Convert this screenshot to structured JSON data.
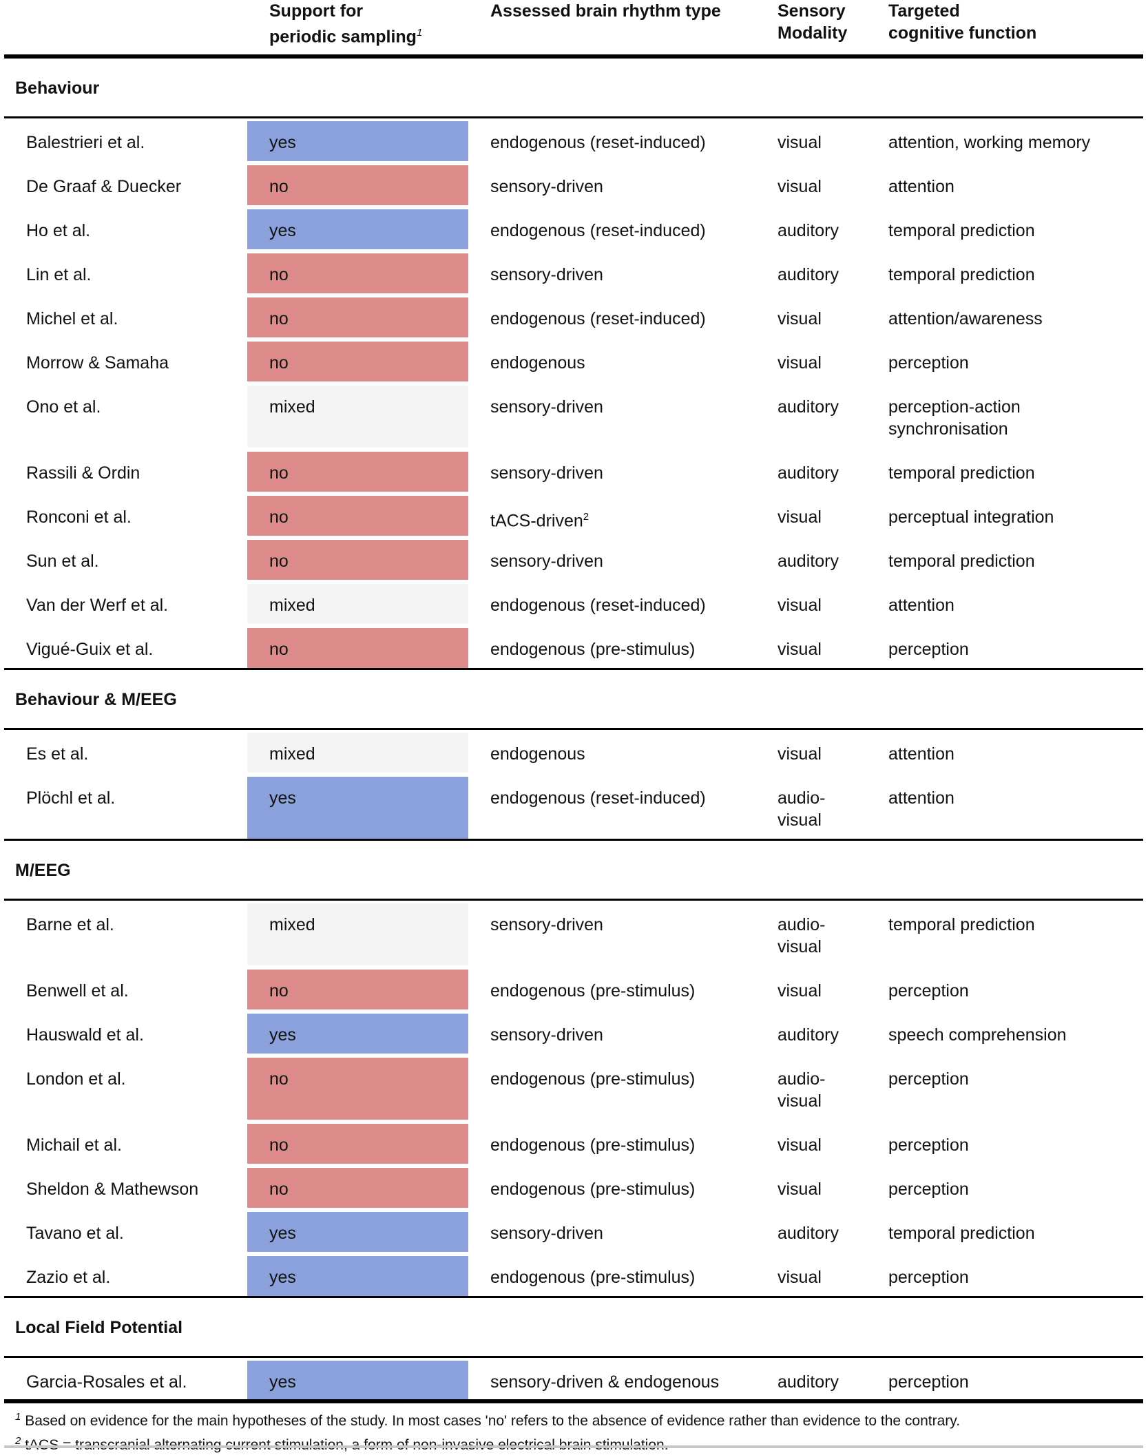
{
  "colors": {
    "yes": "#8aa1dc",
    "no": "#dd8a8b",
    "mixed": "#f4f4f4"
  },
  "headers": {
    "support_line1": "Support for",
    "support_line2": "periodic sampling",
    "support_mark": "1",
    "rhythm": "Assessed brain rhythm type",
    "modality_line1": "Sensory",
    "modality_line2": "Modality",
    "function_line1": "Targeted",
    "function_line2": "cognitive function"
  },
  "sections": [
    {
      "title": "Behaviour",
      "rows": [
        {
          "study": "Balestrieri et al.",
          "support": "yes",
          "rhythm": "endogenous (reset-induced)",
          "modality": "visual",
          "function": "attention, working memory"
        },
        {
          "study": "De Graaf & Duecker",
          "support": "no",
          "rhythm": "sensory-driven",
          "modality": "visual",
          "function": "attention"
        },
        {
          "study": "Ho et al.",
          "support": "yes",
          "rhythm": "endogenous (reset-induced)",
          "modality": "auditory",
          "function": "temporal prediction"
        },
        {
          "study": "Lin et al.",
          "support": "no",
          "rhythm": "sensory-driven",
          "modality": "auditory",
          "function": "temporal prediction"
        },
        {
          "study": "Michel et al.",
          "support": "no",
          "rhythm": "endogenous (reset-induced)",
          "modality": "visual",
          "function": "attention/awareness"
        },
        {
          "study": "Morrow & Samaha",
          "support": "no",
          "rhythm": "endogenous",
          "modality": "visual",
          "function": "perception"
        },
        {
          "study": "Ono et al.",
          "support": "mixed",
          "rhythm": "sensory-driven",
          "modality": "auditory",
          "function": "perception-action",
          "function_line2": "synchronisation"
        },
        {
          "study": "Rassili & Ordin",
          "support": "no",
          "rhythm": "sensory-driven",
          "modality": "auditory",
          "function": "temporal prediction"
        },
        {
          "study": "Ronconi et al.",
          "support": "no",
          "rhythm": "tACS-driven",
          "rhythm_mark": "2",
          "modality": "visual",
          "function": "perceptual integration"
        },
        {
          "study": "Sun et al.",
          "support": "no",
          "rhythm": "sensory-driven",
          "modality": "auditory",
          "function": "temporal prediction"
        },
        {
          "study": "Van der Werf et al.",
          "support": "mixed",
          "rhythm": "endogenous (reset-induced)",
          "modality": "visual",
          "function": "attention"
        },
        {
          "study": "Vigué-Guix et al.",
          "support": "no",
          "rhythm": "endogenous (pre-stimulus)",
          "modality": "visual",
          "function": "perception"
        }
      ]
    },
    {
      "title": "Behaviour & M/EEG",
      "rows": [
        {
          "study": "Es et al.",
          "support": "mixed",
          "rhythm": "endogenous",
          "modality": "visual",
          "function": "attention"
        },
        {
          "study": "Plöchl et al.",
          "support": "yes",
          "rhythm": "endogenous (reset-induced)",
          "modality": "audio-",
          "modality_line2": "visual",
          "function": "attention"
        }
      ]
    },
    {
      "title": "M/EEG",
      "rows": [
        {
          "study": "Barne et al.",
          "support": "mixed",
          "rhythm": "sensory-driven",
          "modality": "audio-",
          "modality_line2": "visual",
          "function": "temporal prediction"
        },
        {
          "study": "Benwell et al.",
          "support": "no",
          "rhythm": "endogenous (pre-stimulus)",
          "modality": "visual",
          "function": "perception"
        },
        {
          "study": "Hauswald et al.",
          "support": "yes",
          "rhythm": "sensory-driven",
          "modality": "auditory",
          "function": "speech comprehension"
        },
        {
          "study": "London et al.",
          "support": "no",
          "rhythm": "endogenous (pre-stimulus)",
          "modality": "audio-",
          "modality_line2": "visual",
          "function": "perception"
        },
        {
          "study": "Michail et al.",
          "support": "no",
          "rhythm": "endogenous (pre-stimulus)",
          "modality": "visual",
          "function": "perception"
        },
        {
          "study": "Sheldon & Mathewson",
          "support": "no",
          "rhythm": "endogenous (pre-stimulus)",
          "modality": "visual",
          "function": "perception"
        },
        {
          "study": "Tavano et al.",
          "support": "yes",
          "rhythm": "sensory-driven",
          "modality": "auditory",
          "function": "temporal prediction"
        },
        {
          "study": "Zazio et al.",
          "support": "yes",
          "rhythm": "endogenous (pre-stimulus)",
          "modality": "visual",
          "function": "perception"
        }
      ]
    },
    {
      "title": "Local Field Potential",
      "rows": [
        {
          "study": "Garcia-Rosales et al.",
          "support": "yes",
          "rhythm": "sensory-driven & endogenous",
          "modality": "auditory",
          "function": "perception"
        }
      ]
    }
  ],
  "footnotes": [
    {
      "mark": "1",
      "text": "Based on evidence for the main hypotheses of the study. In most cases 'no' refers to the absence of evidence rather than evidence to the contrary."
    },
    {
      "mark": "2",
      "text": "tACS = transcranial alternating current stimulation, a form of non-invasive electrical brain stimulation."
    }
  ]
}
